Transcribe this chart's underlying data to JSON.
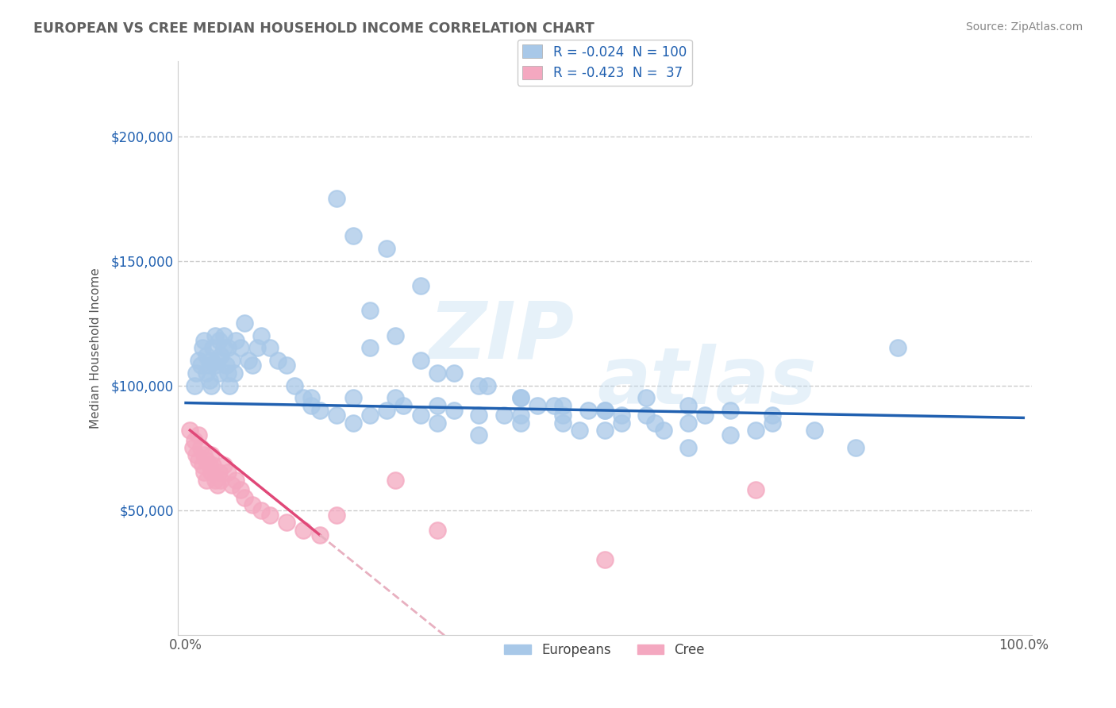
{
  "title": "EUROPEAN VS CREE MEDIAN HOUSEHOLD INCOME CORRELATION CHART",
  "source_text": "Source: ZipAtlas.com",
  "ylabel": "Median Household Income",
  "ytick_labels": [
    "$50,000",
    "$100,000",
    "$150,000",
    "$200,000"
  ],
  "ytick_values": [
    50000,
    100000,
    150000,
    200000
  ],
  "watermark_zip": "ZIP",
  "watermark_atlas": "atlas",
  "blue_scatter_color": "#a8c8e8",
  "pink_scatter_color": "#f4a8c0",
  "blue_line_color": "#2060b0",
  "pink_line_color": "#e04878",
  "pink_dashed_color": "#e8b0c0",
  "grid_color": "#cccccc",
  "background_color": "#ffffff",
  "title_color": "#606060",
  "source_color": "#888888",
  "axis_label_color": "#2060b0",
  "legend_label_color": "#2060b0",
  "bottom_legend_color": "#444444",
  "legend1_label": "R = -0.024  N = 100",
  "legend2_label": "R = -0.423  N =  37",
  "europeans_x": [
    0.01,
    0.012,
    0.015,
    0.018,
    0.02,
    0.022,
    0.025,
    0.025,
    0.028,
    0.028,
    0.03,
    0.03,
    0.032,
    0.035,
    0.035,
    0.038,
    0.04,
    0.04,
    0.042,
    0.045,
    0.045,
    0.048,
    0.05,
    0.05,
    0.052,
    0.055,
    0.058,
    0.06,
    0.065,
    0.07,
    0.075,
    0.08,
    0.085,
    0.09,
    0.1,
    0.11,
    0.12,
    0.13,
    0.14,
    0.15,
    0.16,
    0.18,
    0.2,
    0.22,
    0.24,
    0.26,
    0.28,
    0.3,
    0.32,
    0.35,
    0.38,
    0.4,
    0.42,
    0.45,
    0.47,
    0.5,
    0.52,
    0.55,
    0.57,
    0.6,
    0.62,
    0.65,
    0.68,
    0.7,
    0.55,
    0.6,
    0.65,
    0.7,
    0.75,
    0.8,
    0.22,
    0.25,
    0.28,
    0.32,
    0.36,
    0.4,
    0.44,
    0.48,
    0.52,
    0.56,
    0.18,
    0.2,
    0.24,
    0.28,
    0.22,
    0.3,
    0.35,
    0.4,
    0.45,
    0.5,
    0.15,
    0.2,
    0.25,
    0.3,
    0.35,
    0.4,
    0.45,
    0.5,
    0.6,
    0.85
  ],
  "europeans_y": [
    100000,
    105000,
    110000,
    108000,
    115000,
    118000,
    112000,
    105000,
    108000,
    102000,
    110000,
    100000,
    115000,
    108000,
    120000,
    110000,
    118000,
    105000,
    112000,
    120000,
    115000,
    108000,
    115000,
    105000,
    100000,
    110000,
    105000,
    118000,
    115000,
    125000,
    110000,
    108000,
    115000,
    120000,
    115000,
    110000,
    108000,
    100000,
    95000,
    92000,
    90000,
    88000,
    85000,
    88000,
    90000,
    92000,
    88000,
    85000,
    90000,
    80000,
    88000,
    85000,
    92000,
    88000,
    82000,
    90000,
    85000,
    88000,
    82000,
    85000,
    88000,
    80000,
    82000,
    85000,
    95000,
    92000,
    90000,
    88000,
    82000,
    75000,
    115000,
    120000,
    110000,
    105000,
    100000,
    95000,
    92000,
    90000,
    88000,
    85000,
    175000,
    160000,
    155000,
    140000,
    130000,
    105000,
    100000,
    95000,
    92000,
    90000,
    95000,
    95000,
    95000,
    92000,
    88000,
    88000,
    85000,
    82000,
    75000,
    115000
  ],
  "cree_x": [
    0.005,
    0.008,
    0.01,
    0.012,
    0.015,
    0.015,
    0.018,
    0.02,
    0.022,
    0.022,
    0.025,
    0.025,
    0.028,
    0.03,
    0.03,
    0.032,
    0.035,
    0.038,
    0.04,
    0.042,
    0.045,
    0.05,
    0.055,
    0.06,
    0.065,
    0.07,
    0.08,
    0.09,
    0.1,
    0.12,
    0.14,
    0.16,
    0.18,
    0.25,
    0.3,
    0.5,
    0.68
  ],
  "cree_y": [
    82000,
    75000,
    78000,
    72000,
    80000,
    70000,
    75000,
    68000,
    72000,
    65000,
    70000,
    62000,
    68000,
    72000,
    65000,
    68000,
    62000,
    60000,
    65000,
    62000,
    68000,
    65000,
    60000,
    62000,
    58000,
    55000,
    52000,
    50000,
    48000,
    45000,
    42000,
    40000,
    48000,
    62000,
    42000,
    30000,
    58000
  ]
}
